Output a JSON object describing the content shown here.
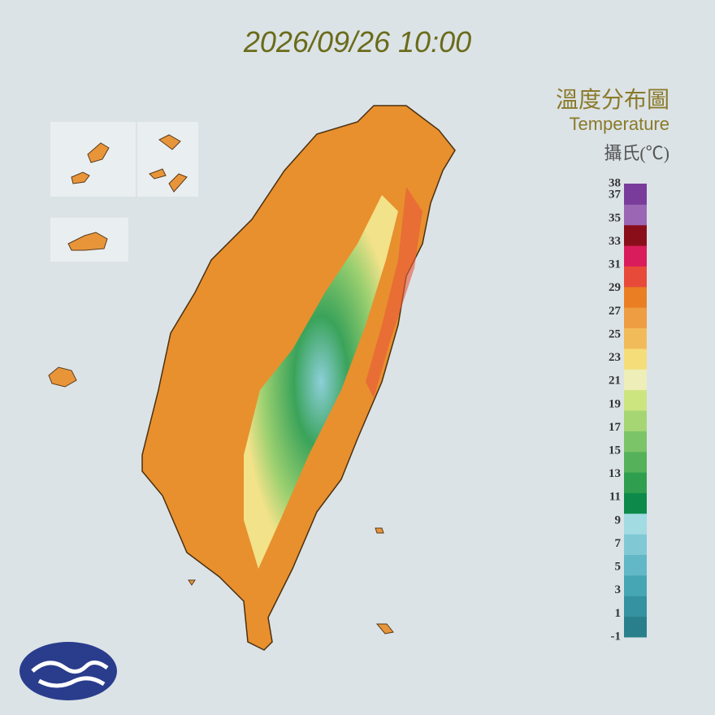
{
  "header": {
    "timestamp": "2026/09/26 10:00"
  },
  "legend": {
    "title_zh": "溫度分布圖",
    "title_en": "Temperature",
    "unit": "攝氏(℃)",
    "ticks": [
      38,
      37,
      35,
      33,
      31,
      29,
      27,
      25,
      23,
      21,
      19,
      17,
      15,
      13,
      11,
      9,
      7,
      5,
      3,
      1,
      -1
    ],
    "colors": [
      "#2a7f8c",
      "#3592a0",
      "#46a6b4",
      "#62b8c6",
      "#80c9d4",
      "#a3dbe3",
      "#0d8a4a",
      "#2f9e4f",
      "#55b25a",
      "#7cc468",
      "#a6d574",
      "#cce57f",
      "#eeeeb8",
      "#f5dd7a",
      "#f2bb5a",
      "#ee9d42",
      "#e97f22",
      "#e84a3a",
      "#d91c5b",
      "#8a0e1a",
      "#9b66b4",
      "#7a3c9a"
    ]
  }
}
